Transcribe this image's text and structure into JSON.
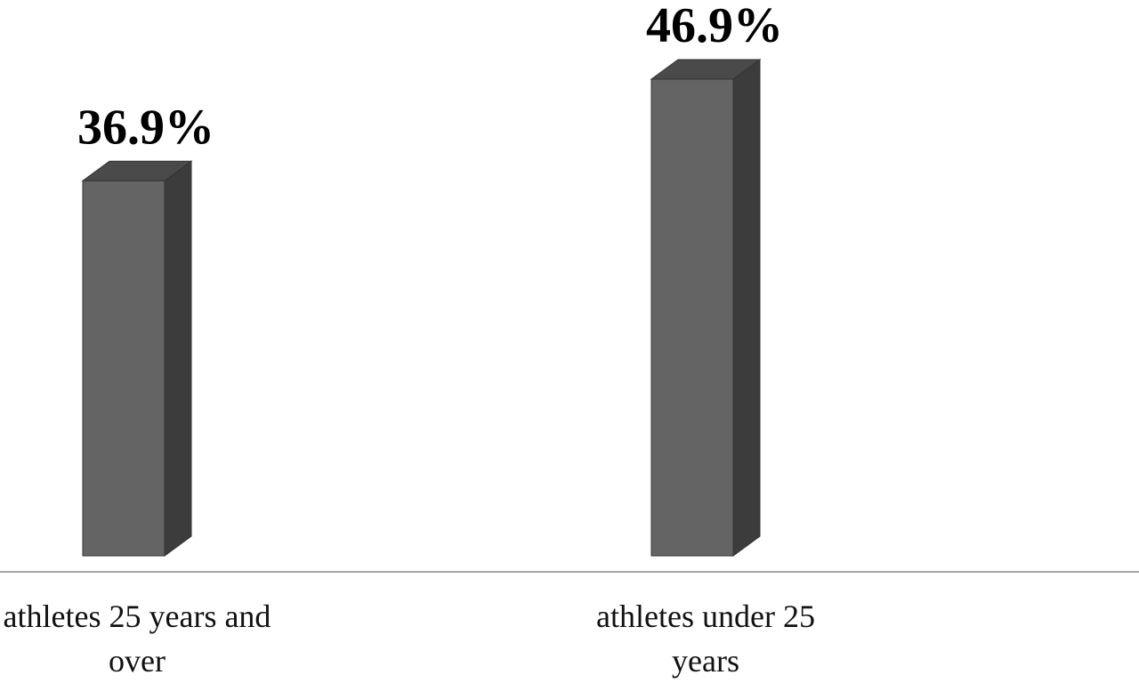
{
  "chart_data": {
    "type": "bar3d",
    "categories": [
      "athletes 25 years and over",
      "athletes under 25 years"
    ],
    "values": [
      36.9,
      46.9
    ],
    "value_labels": [
      "36.9%",
      "46.9%"
    ],
    "color": "#646464"
  }
}
